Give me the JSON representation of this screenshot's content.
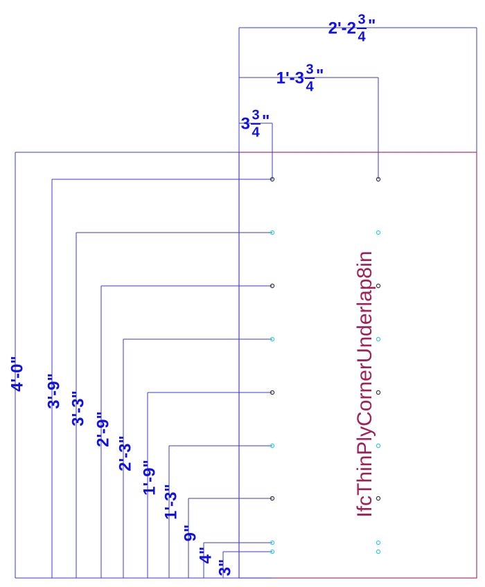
{
  "top_dimensions": [
    {
      "whole": "2'-2",
      "numerator": "3",
      "denominator": "4",
      "mark": "\""
    },
    {
      "whole": "1'-3",
      "numerator": "3",
      "denominator": "4",
      "mark": "\""
    },
    {
      "whole": "3",
      "numerator": "3",
      "denominator": "4",
      "mark": "\""
    }
  ],
  "left_dimensions": [
    "4'-0\"",
    "3'-9\"",
    "3'-3\"",
    "2'-9\"",
    "2'-3\"",
    "1'-9\"",
    "1'-3\"",
    "9\"",
    "4\"",
    "3\""
  ],
  "label": "IfcThinPlyCornerUnderlap8in"
}
